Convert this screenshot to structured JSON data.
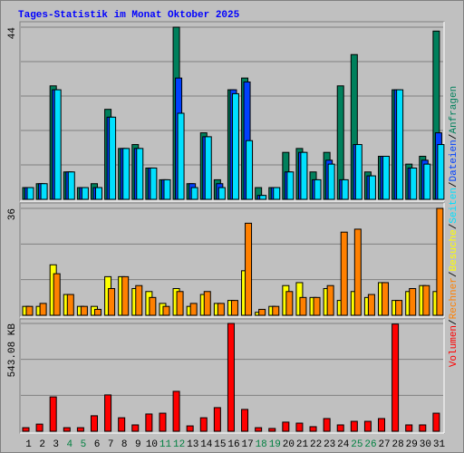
{
  "chart_data": [
    {
      "type": "bar",
      "title": "Tages-Statistik im Monat Oktober 2025",
      "title_color": "#0000ff",
      "ylim": [
        0,
        44
      ],
      "yticks": [
        44
      ],
      "legend_separator": "/",
      "series": [
        {
          "name": "Anfragen",
          "color": "#00805c",
          "values": [
            3,
            4,
            29,
            7,
            3,
            4,
            23,
            13,
            14,
            8,
            5,
            44,
            4,
            17,
            5,
            28,
            31,
            3,
            3,
            12,
            13,
            7,
            12,
            29,
            37,
            7,
            11,
            28,
            9,
            11,
            43
          ]
        },
        {
          "name": "Dateien",
          "color": "#0040ff",
          "values": [
            3,
            4,
            28,
            7,
            3,
            3,
            21,
            13,
            13,
            8,
            5,
            31,
            4,
            16,
            4,
            28,
            30,
            1,
            3,
            7,
            12,
            5,
            10,
            5,
            14,
            6,
            11,
            28,
            8,
            10,
            17
          ]
        },
        {
          "name": "Seiten",
          "color": "#00e0ff",
          "values": [
            3,
            4,
            28,
            7,
            3,
            3,
            21,
            13,
            13,
            8,
            5,
            22,
            3,
            16,
            3,
            27,
            15,
            1,
            3,
            7,
            12,
            5,
            9,
            5,
            14,
            6,
            11,
            28,
            8,
            9,
            14
          ]
        }
      ]
    },
    {
      "type": "bar",
      "ylim": [
        0,
        36
      ],
      "yticks": [
        36
      ],
      "series": [
        {
          "name": "Besuche",
          "color": "#ffff00",
          "values": [
            3,
            3,
            17,
            7,
            3,
            3,
            13,
            13,
            9,
            8,
            4,
            9,
            3,
            7,
            4,
            5,
            15,
            1,
            3,
            10,
            11,
            6,
            9,
            5,
            8,
            6,
            11,
            5,
            8,
            10,
            8
          ]
        },
        {
          "name": "Rechner",
          "color": "#ff8000",
          "values": [
            3,
            4,
            14,
            7,
            3,
            2,
            9,
            13,
            10,
            6,
            3,
            8,
            4,
            8,
            4,
            5,
            31,
            2,
            3,
            8,
            6,
            6,
            10,
            28,
            29,
            7,
            11,
            5,
            9,
            10,
            36
          ]
        }
      ]
    },
    {
      "type": "bar",
      "ylim": [
        0,
        543.08
      ],
      "yticks": [
        {
          "value": 543.08,
          "label": "543.08 KB"
        }
      ],
      "categories": [
        "1",
        "2",
        "3",
        "4",
        "5",
        "6",
        "7",
        "8",
        "9",
        "10",
        "11",
        "12",
        "13",
        "14",
        "15",
        "16",
        "17",
        "18",
        "19",
        "20",
        "21",
        "22",
        "23",
        "24",
        "25",
        "26",
        "27",
        "28",
        "29",
        "30",
        "31"
      ],
      "highlight_indices": [
        3,
        4,
        10,
        11,
        17,
        18,
        24,
        25
      ],
      "highlight_color": "#008040",
      "series": [
        {
          "name": "Volumen",
          "color": "#ff0000",
          "values": [
            18,
            36,
            173,
            18,
            18,
            78,
            183,
            68,
            32,
            87,
            91,
            201,
            27,
            68,
            119,
            543.08,
            110,
            18,
            14,
            46,
            41,
            23,
            64,
            32,
            50,
            50,
            64,
            540,
            32,
            32,
            91
          ]
        }
      ]
    }
  ]
}
